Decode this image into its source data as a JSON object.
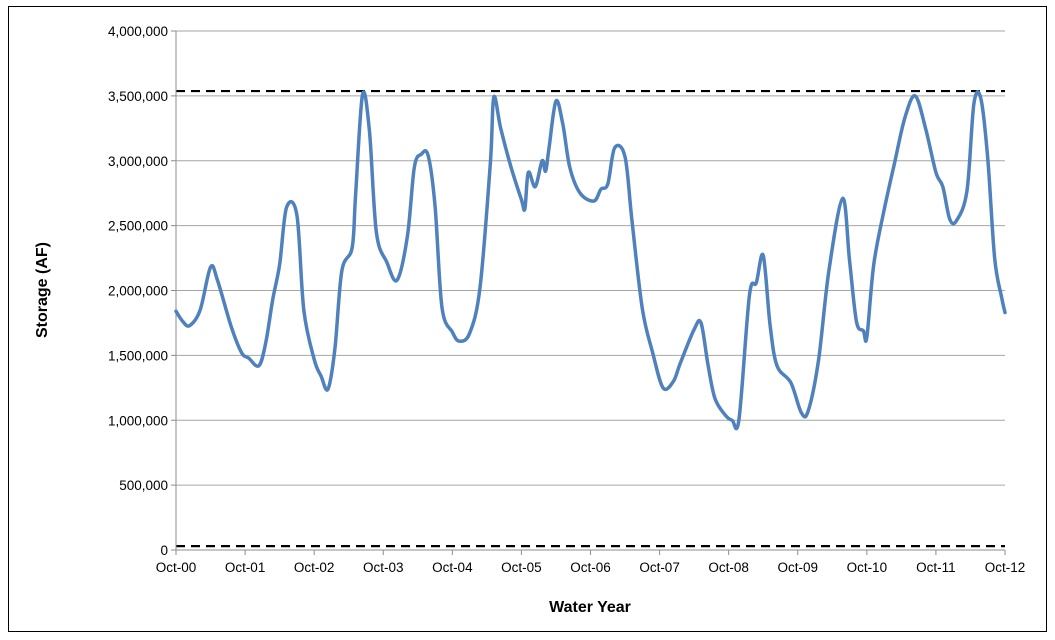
{
  "chart_data": {
    "type": "line",
    "xlabel": "Water Year",
    "ylabel": "Storage (AF)",
    "x_ticks": [
      "Oct-00",
      "Oct-01",
      "Oct-02",
      "Oct-03",
      "Oct-04",
      "Oct-05",
      "Oct-06",
      "Oct-07",
      "Oct-08",
      "Oct-09",
      "Oct-10",
      "Oct-11",
      "Oct-12"
    ],
    "y_ticks": [
      "0",
      "500,000",
      "1,000,000",
      "1,500,000",
      "2,000,000",
      "2,500,000",
      "3,000,000",
      "3,500,000",
      "4,000,000"
    ],
    "xlim": [
      0,
      12
    ],
    "ylim": [
      0,
      4000000
    ],
    "x_unit": "years after Oct-00",
    "grid": "horizontal",
    "colors": {
      "series": "#4f81bd",
      "reference": "#000000",
      "grid": "#a6a6a6"
    },
    "reference_lines": [
      {
        "y": 3537000,
        "style": "dashed"
      },
      {
        "y": 30000,
        "style": "dashed"
      }
    ],
    "series": [
      {
        "x": [
          0,
          0.1,
          0.2,
          0.35,
          0.5,
          0.6,
          0.8,
          0.95,
          1.05,
          1.2,
          1.3,
          1.4,
          1.5,
          1.6,
          1.75,
          1.85,
          2.0,
          2.1,
          2.2,
          2.3,
          2.4,
          2.55,
          2.6,
          2.7,
          2.8,
          2.9,
          3.05,
          3.2,
          3.35,
          3.45,
          3.55,
          3.65,
          3.75,
          3.85,
          4.0,
          4.1,
          4.25,
          4.4,
          4.55,
          4.6,
          4.7,
          4.85,
          5.0,
          5.05,
          5.1,
          5.2,
          5.3,
          5.35,
          5.4,
          5.5,
          5.6,
          5.7,
          5.85,
          6.05,
          6.15,
          6.25,
          6.35,
          6.5,
          6.6,
          6.75,
          6.9,
          7.05,
          7.2,
          7.3,
          7.5,
          7.6,
          7.7,
          7.8,
          7.95,
          8.05,
          8.15,
          8.3,
          8.4,
          8.5,
          8.6,
          8.7,
          8.9,
          9.05,
          9.15,
          9.3,
          9.45,
          9.65,
          9.75,
          9.85,
          9.95,
          10.0,
          10.1,
          10.25,
          10.4,
          10.55,
          10.7,
          10.85,
          11.0,
          11.1,
          11.2,
          11.3,
          11.45,
          11.55,
          11.65,
          11.75,
          11.85,
          11.95,
          12.0
        ],
        "values": [
          1840000,
          1760000,
          1730000,
          1850000,
          2180000,
          2080000,
          1720000,
          1520000,
          1480000,
          1420000,
          1600000,
          1930000,
          2200000,
          2640000,
          2580000,
          1850000,
          1470000,
          1340000,
          1240000,
          1550000,
          2150000,
          2330000,
          2740000,
          3510000,
          3230000,
          2450000,
          2220000,
          2080000,
          2420000,
          2950000,
          3050000,
          3040000,
          2650000,
          1870000,
          1680000,
          1610000,
          1670000,
          2020000,
          2980000,
          3490000,
          3250000,
          2950000,
          2700000,
          2630000,
          2910000,
          2800000,
          3000000,
          2920000,
          3100000,
          3460000,
          3280000,
          2950000,
          2750000,
          2690000,
          2780000,
          2820000,
          3100000,
          3030000,
          2540000,
          1860000,
          1520000,
          1250000,
          1300000,
          1440000,
          1700000,
          1750000,
          1430000,
          1170000,
          1040000,
          1000000,
          1010000,
          1960000,
          2060000,
          2270000,
          1730000,
          1420000,
          1290000,
          1060000,
          1070000,
          1460000,
          2150000,
          2710000,
          2230000,
          1760000,
          1690000,
          1640000,
          2200000,
          2620000,
          2980000,
          3330000,
          3500000,
          3250000,
          2910000,
          2800000,
          2550000,
          2540000,
          2770000,
          3440000,
          3480000,
          3020000,
          2250000,
          1950000,
          1830000
        ]
      }
    ]
  }
}
